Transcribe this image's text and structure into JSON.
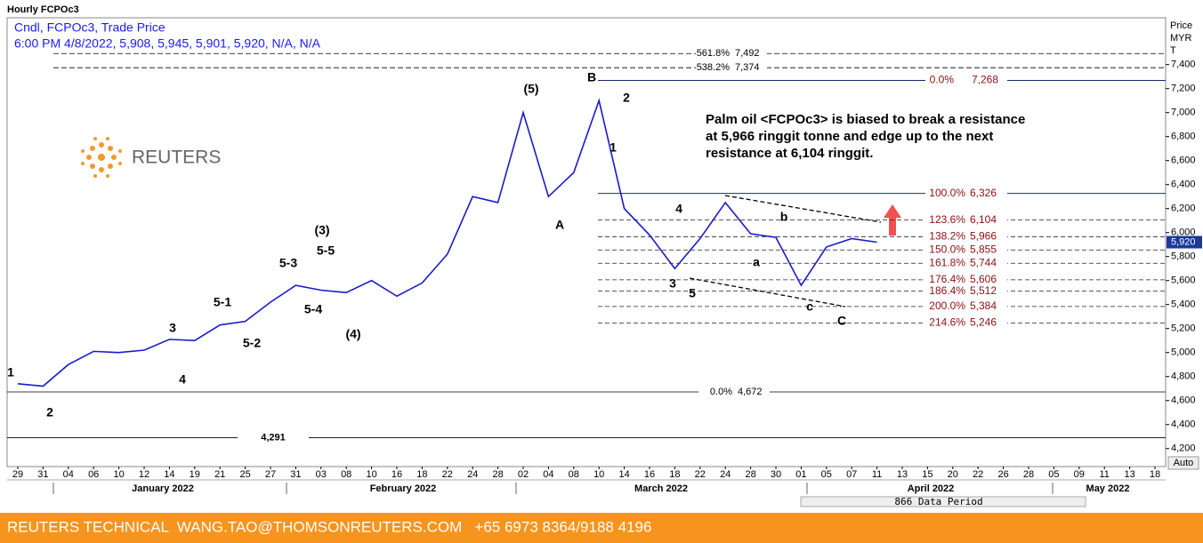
{
  "header": {
    "title": "Hourly FCPOc3",
    "line1": "Cndl, FCPOc3, Trade Price",
    "line2": "6:00 PM 4/8/2022, 5,908, 5,945, 5,901, 5,920, N/A, N/A",
    "axis_title": [
      "Price",
      "MYR",
      "T"
    ],
    "auto_button": "Auto",
    "data_period": "866 Data Period",
    "logo": "REUTERS"
  },
  "chart_data": {
    "type": "line",
    "color": "#1a1acc",
    "categories": [
      "29",
      "31",
      "04",
      "06",
      "10",
      "12",
      "14",
      "19",
      "21",
      "25",
      "27",
      "31",
      "03",
      "08",
      "10",
      "16",
      "18",
      "22",
      "24",
      "28",
      "02",
      "04",
      "08",
      "10",
      "14",
      "16",
      "18",
      "22",
      "24",
      "28",
      "30",
      "01",
      "05",
      "07",
      "11",
      "13",
      "15",
      "20",
      "22",
      "26",
      "28",
      "05",
      "09",
      "11",
      "13",
      "18"
    ],
    "months": [
      "January 2022",
      "February 2022",
      "March 2022",
      "April 2022",
      "May 2022"
    ],
    "series": [
      {
        "name": "FCPOc3",
        "color": "#1a1acc",
        "values": [
          4740,
          4720,
          4900,
          5010,
          5000,
          5020,
          5110,
          5100,
          5230,
          5260,
          5420,
          5560,
          5520,
          5500,
          5600,
          5470,
          5580,
          5820,
          6300,
          6250,
          7000,
          6300,
          6500,
          7100,
          6200,
          5980,
          5700,
          5950,
          6250,
          5990,
          5960,
          5560,
          5880,
          5950,
          5920,
          null,
          null,
          null,
          null,
          null,
          null,
          null,
          null,
          null,
          null,
          null
        ]
      }
    ],
    "ylim": [
      4050,
      7790
    ],
    "yticks": [
      {
        "value": 4200,
        "label": "4,200"
      },
      {
        "value": 4400,
        "label": "4,400"
      },
      {
        "value": 4600,
        "label": "4,600"
      },
      {
        "value": 4800,
        "label": "4,800"
      },
      {
        "value": 5000,
        "label": "5,000"
      },
      {
        "value": 5200,
        "label": "5,200"
      },
      {
        "value": 5400,
        "label": "5,400"
      },
      {
        "value": 5600,
        "label": "5,600"
      },
      {
        "value": 5800,
        "label": "5,800"
      },
      {
        "value": 6000,
        "label": "6,000"
      },
      {
        "value": 6200,
        "label": "6,200"
      },
      {
        "value": 6400,
        "label": "6,400"
      },
      {
        "value": 6600,
        "label": "6,600"
      },
      {
        "value": 6800,
        "label": "6,800"
      },
      {
        "value": 7000,
        "label": "7,000"
      },
      {
        "value": 7200,
        "label": "7,200"
      },
      {
        "value": 7400,
        "label": "7,400"
      }
    ],
    "last_price": {
      "value": 5920,
      "label": "5,920"
    },
    "long_levels": [
      {
        "pct": "561.8%",
        "value": 7492,
        "label": "7,492"
      },
      {
        "pct": "538.2%",
        "value": 7374,
        "label": "7,374"
      },
      {
        "pct": "0.0%",
        "value": 4672,
        "label": "4,672"
      },
      {
        "value": 4291,
        "label": "4,291"
      }
    ],
    "fib_levels": [
      {
        "pct": "0.0%",
        "value": 7268,
        "label": "7,268"
      },
      {
        "pct": "100.0%",
        "value": 6326,
        "label": "6,326"
      },
      {
        "pct": "123.6%",
        "value": 6104,
        "label": "6,104"
      },
      {
        "pct": "138.2%",
        "value": 5966,
        "label": "5,966"
      },
      {
        "pct": "150.0%",
        "value": 5855,
        "label": "5,855"
      },
      {
        "pct": "161.8%",
        "value": 5744,
        "label": "5,744"
      },
      {
        "pct": "176.4%",
        "value": 5606,
        "label": "5,606"
      },
      {
        "pct": "186.4%",
        "value": 5512,
        "label": "5,512"
      },
      {
        "pct": "200.0%",
        "value": 5384,
        "label": "5,384"
      },
      {
        "pct": "214.6%",
        "value": 5246,
        "label": "5,246"
      }
    ],
    "wave_labels": [
      "1",
      "2",
      "3",
      "4",
      "5-1",
      "5-2",
      "5-3",
      "(3)",
      "5-5",
      "5-4",
      "(4)",
      "(5)",
      "A",
      "B",
      "1",
      "2",
      "4",
      "3",
      "5",
      "b",
      "a",
      "c",
      "C"
    ],
    "annotation": [
      "Palm oil <FCPOc3> is biased to break a resistance",
      "at 5,966 ringgit tonne and edge up to the next",
      "resistance at 6,104 ringgit."
    ]
  },
  "footer": {
    "text": "REUTERS TECHNICAL  WANG.TAO@THOMSONREUTERS.COM   +65 6973 8364/9188 4196"
  }
}
